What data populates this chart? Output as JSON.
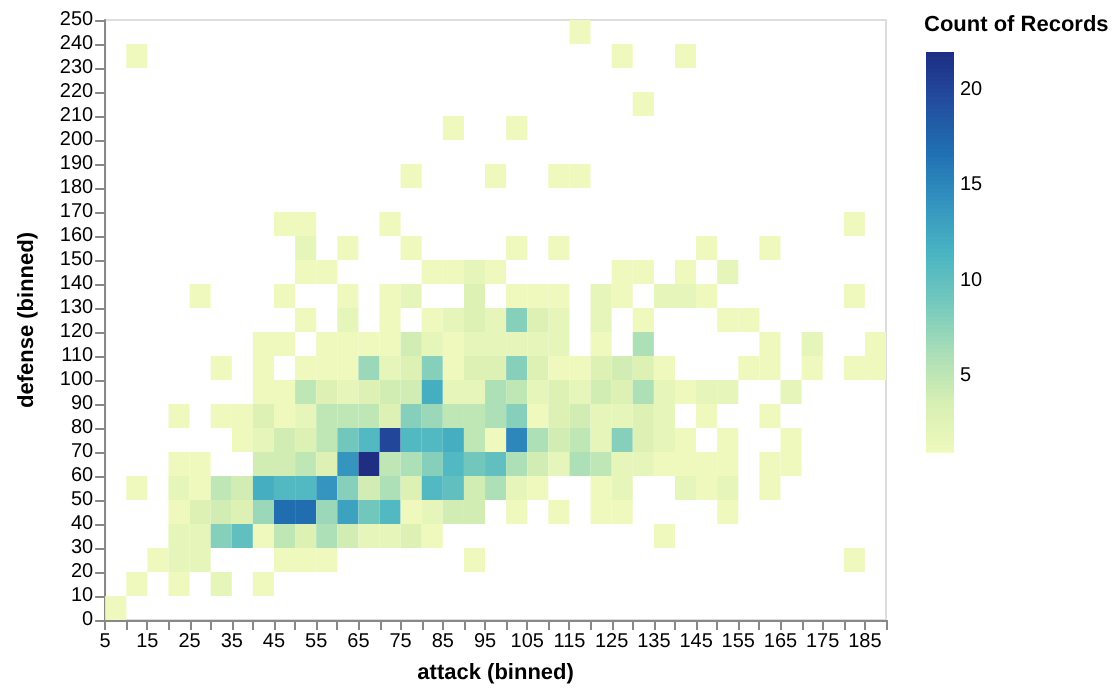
{
  "chart_data": {
    "type": "heatmap",
    "xlabel": "attack (binned)",
    "ylabel": "defense (binned)",
    "clabel": "Count of Records",
    "x": [
      7.5,
      12.5,
      17.5,
      22.5,
      27.5,
      32.5,
      37.5,
      42.5,
      47.5,
      52.5,
      57.5,
      62.5,
      67.5,
      72.5,
      77.5,
      82.5,
      87.5,
      92.5,
      97.5,
      102.5,
      107.5,
      112.5,
      117.5,
      122.5,
      127.5,
      132.5,
      137.5,
      142.5,
      147.5,
      152.5,
      157.5,
      162.5,
      167.5,
      172.5,
      177.5,
      182.5,
      187.5
    ],
    "y": [
      245,
      235,
      215,
      205,
      185,
      165,
      155,
      145,
      135,
      125,
      115,
      105,
      95,
      85,
      75,
      65,
      55,
      45,
      35,
      25,
      15,
      5
    ],
    "xlim": [
      5,
      190
    ],
    "xticks": [
      5,
      {
        "value": 10,
        "label": null
      },
      15,
      {
        "value": 20,
        "label": null
      },
      25,
      {
        "value": 30,
        "label": null
      },
      35,
      {
        "value": 40,
        "label": null
      },
      45,
      {
        "value": 50,
        "label": null
      },
      55,
      {
        "value": 60,
        "label": null
      },
      65,
      {
        "value": 70,
        "label": null
      },
      75,
      {
        "value": 80,
        "label": null
      },
      85,
      {
        "value": 90,
        "label": null
      },
      95,
      {
        "value": 100,
        "label": null
      },
      105,
      {
        "value": 110,
        "label": null
      },
      115,
      {
        "value": 120,
        "label": null
      },
      125,
      {
        "value": 130,
        "label": null
      },
      135,
      {
        "value": 140,
        "label": null
      },
      145,
      {
        "value": 150,
        "label": null
      },
      155,
      {
        "value": 160,
        "label": null
      },
      165,
      {
        "value": 170,
        "label": null
      },
      175,
      {
        "value": 180,
        "label": null
      },
      185,
      {
        "value": 190,
        "label": null
      }
    ],
    "ylim": [
      0,
      250
    ],
    "yticks": [
      0,
      10,
      20,
      30,
      40,
      50,
      60,
      70,
      80,
      90,
      100,
      110,
      120,
      130,
      140,
      150,
      160,
      170,
      180,
      190,
      200,
      210,
      220,
      230,
      240,
      250
    ],
    "clim": [
      1,
      22
    ],
    "cticks": [
      5,
      10,
      15,
      20
    ],
    "cells": [
      [
        null,
        null,
        null,
        null,
        null,
        null,
        null,
        null,
        null,
        null,
        null,
        null,
        null,
        null,
        null,
        null,
        null,
        null,
        null,
        null,
        null,
        null,
        1,
        null,
        null,
        null,
        null,
        null,
        null,
        null,
        null,
        null,
        null,
        null,
        null,
        null,
        null
      ],
      [
        null,
        1,
        null,
        null,
        null,
        null,
        null,
        null,
        null,
        null,
        null,
        null,
        null,
        null,
        null,
        null,
        null,
        null,
        null,
        null,
        null,
        null,
        null,
        null,
        1,
        null,
        null,
        1,
        null,
        null,
        null,
        null,
        null,
        null,
        null,
        null,
        null
      ],
      [
        null,
        null,
        null,
        null,
        null,
        null,
        null,
        null,
        null,
        null,
        null,
        null,
        null,
        null,
        null,
        null,
        null,
        null,
        null,
        null,
        null,
        null,
        null,
        null,
        null,
        1,
        null,
        null,
        null,
        null,
        null,
        null,
        null,
        null,
        null,
        null,
        null
      ],
      [
        null,
        null,
        null,
        null,
        null,
        null,
        null,
        null,
        null,
        null,
        null,
        null,
        null,
        null,
        null,
        null,
        1,
        null,
        null,
        1,
        null,
        null,
        null,
        null,
        null,
        null,
        null,
        null,
        null,
        null,
        null,
        null,
        null,
        null,
        null,
        null,
        null
      ],
      [
        null,
        null,
        null,
        null,
        null,
        null,
        null,
        null,
        null,
        null,
        null,
        null,
        null,
        null,
        1,
        null,
        null,
        null,
        1,
        null,
        null,
        1,
        1,
        null,
        null,
        null,
        null,
        null,
        null,
        null,
        null,
        null,
        null,
        null,
        null,
        null,
        null
      ],
      [
        null,
        null,
        null,
        null,
        null,
        null,
        null,
        null,
        1,
        1,
        null,
        null,
        null,
        1,
        null,
        null,
        null,
        null,
        null,
        null,
        null,
        null,
        null,
        null,
        null,
        null,
        null,
        null,
        null,
        null,
        null,
        null,
        null,
        null,
        null,
        1,
        null
      ],
      [
        null,
        null,
        null,
        null,
        null,
        null,
        null,
        null,
        null,
        2,
        null,
        1,
        null,
        null,
        1,
        null,
        null,
        null,
        null,
        1,
        null,
        1,
        null,
        null,
        null,
        null,
        null,
        null,
        1,
        null,
        null,
        1,
        null,
        null,
        null,
        null,
        null
      ],
      [
        null,
        null,
        null,
        null,
        null,
        null,
        null,
        null,
        null,
        1,
        1,
        null,
        null,
        null,
        null,
        1,
        1,
        2,
        1,
        null,
        null,
        null,
        null,
        null,
        1,
        1,
        null,
        1,
        null,
        2,
        null,
        null,
        null,
        null,
        null,
        null,
        null
      ],
      [
        null,
        null,
        null,
        null,
        1,
        null,
        null,
        null,
        1,
        null,
        null,
        1,
        null,
        1,
        2,
        null,
        null,
        3,
        null,
        1,
        1,
        1,
        null,
        2,
        1,
        null,
        2,
        2,
        1,
        null,
        null,
        null,
        null,
        null,
        null,
        1,
        null
      ],
      [
        null,
        null,
        null,
        null,
        null,
        null,
        null,
        null,
        null,
        1,
        null,
        2,
        null,
        1,
        null,
        1,
        2,
        3,
        2,
        8,
        3,
        2,
        null,
        2,
        null,
        1,
        null,
        null,
        null,
        1,
        1,
        null,
        null,
        null,
        null,
        null,
        null
      ],
      [
        null,
        null,
        null,
        null,
        null,
        null,
        null,
        1,
        1,
        null,
        1,
        1,
        1,
        1,
        4,
        2,
        1,
        2,
        2,
        2,
        2,
        2,
        null,
        1,
        null,
        6,
        null,
        null,
        null,
        null,
        null,
        1,
        null,
        2,
        null,
        null,
        1
      ],
      [
        null,
        null,
        null,
        null,
        null,
        1,
        null,
        1,
        null,
        1,
        1,
        1,
        7,
        2,
        3,
        8,
        1,
        3,
        3,
        8,
        3,
        1,
        1,
        3,
        4,
        3,
        1,
        null,
        null,
        null,
        1,
        1,
        null,
        1,
        null,
        1,
        1
      ],
      [
        null,
        null,
        null,
        null,
        null,
        null,
        null,
        1,
        1,
        5,
        3,
        2,
        3,
        4,
        4,
        12,
        2,
        2,
        6,
        5,
        2,
        3,
        2,
        4,
        3,
        6,
        2,
        1,
        2,
        2,
        null,
        null,
        2,
        null,
        null,
        null,
        null
      ],
      [
        null,
        null,
        null,
        1,
        null,
        1,
        1,
        3,
        1,
        2,
        5,
        5,
        5,
        3,
        8,
        7,
        5,
        5,
        6,
        8,
        1,
        3,
        4,
        2,
        2,
        3,
        2,
        null,
        1,
        null,
        null,
        1,
        null,
        null,
        null,
        null,
        null
      ],
      [
        null,
        null,
        null,
        null,
        null,
        null,
        1,
        2,
        4,
        3,
        5,
        9,
        11,
        20,
        11,
        11,
        12,
        5,
        1,
        15,
        6,
        4,
        5,
        2,
        8,
        3,
        2,
        1,
        null,
        1,
        null,
        null,
        1,
        null,
        null,
        null,
        null
      ],
      [
        null,
        null,
        null,
        1,
        1,
        null,
        null,
        4,
        4,
        5,
        3,
        14,
        22,
        5,
        6,
        8,
        11,
        9,
        10,
        6,
        4,
        2,
        6,
        5,
        2,
        2,
        1,
        1,
        1,
        1,
        null,
        1,
        1,
        null,
        null,
        null,
        null
      ],
      [
        null,
        1,
        null,
        2,
        1,
        5,
        4,
        12,
        11,
        11,
        14,
        8,
        4,
        6,
        3,
        11,
        10,
        4,
        6,
        2,
        1,
        null,
        null,
        1,
        2,
        null,
        null,
        2,
        1,
        2,
        null,
        1,
        null,
        null,
        null,
        null,
        null
      ],
      [
        null,
        null,
        null,
        1,
        3,
        4,
        3,
        7,
        17,
        17,
        7,
        13,
        9,
        11,
        1,
        2,
        4,
        4,
        null,
        1,
        null,
        1,
        null,
        1,
        1,
        null,
        null,
        null,
        null,
        1,
        null,
        null,
        null,
        null,
        null,
        null,
        null
      ],
      [
        null,
        null,
        null,
        2,
        2,
        8,
        10,
        1,
        5,
        3,
        6,
        4,
        2,
        2,
        3,
        1,
        null,
        null,
        null,
        null,
        null,
        null,
        null,
        null,
        null,
        null,
        1,
        null,
        null,
        null,
        null,
        null,
        null,
        null,
        null,
        null,
        null
      ],
      [
        null,
        null,
        1,
        2,
        2,
        null,
        null,
        null,
        1,
        1,
        1,
        null,
        null,
        null,
        null,
        null,
        null,
        1,
        null,
        null,
        null,
        null,
        null,
        null,
        null,
        null,
        null,
        null,
        null,
        null,
        null,
        null,
        null,
        null,
        null,
        1,
        null
      ],
      [
        null,
        1,
        null,
        1,
        null,
        2,
        null,
        1,
        null,
        null,
        null,
        null,
        null,
        null,
        null,
        null,
        null,
        null,
        null,
        null,
        null,
        null,
        null,
        null,
        null,
        null,
        null,
        null,
        null,
        null,
        null,
        null,
        null,
        null,
        null,
        null,
        null
      ],
      [
        1,
        null,
        null,
        null,
        null,
        null,
        null,
        null,
        null,
        null,
        null,
        null,
        null,
        null,
        null,
        null,
        null,
        null,
        null,
        null,
        null,
        null,
        null,
        null,
        null,
        null,
        null,
        null,
        null,
        null,
        null,
        null,
        null,
        null,
        null,
        null,
        null
      ]
    ]
  }
}
